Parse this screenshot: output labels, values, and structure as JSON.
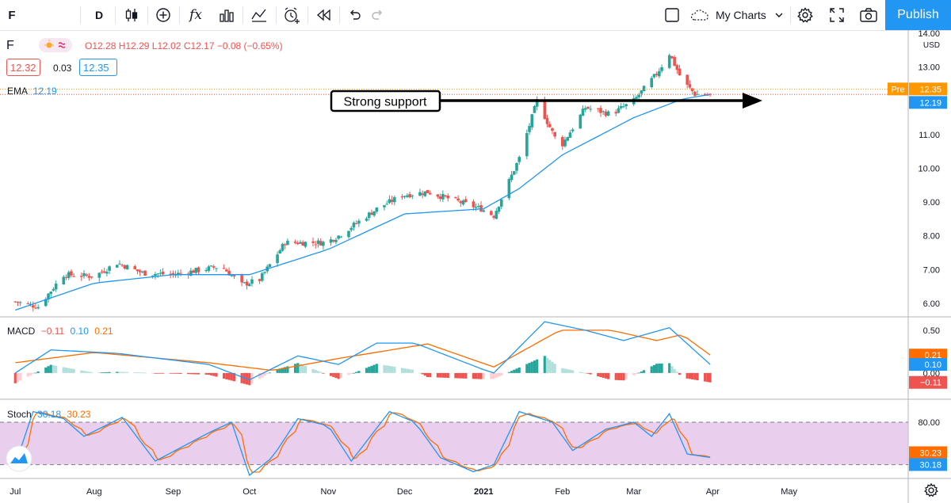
{
  "toolbar": {
    "symbol": "F",
    "interval": "D",
    "indicators_icon": "fx",
    "my_charts_label": "My Charts",
    "publish_label": "Publish"
  },
  "legend": {
    "symbol": "F",
    "open_label": "O12.28",
    "high_label": "H12.29",
    "low_label": "L12.02",
    "close_label": "C12.17",
    "change_label": "−0.08 (−0.65%)",
    "bid": "12.32",
    "spread": "0.03",
    "ask": "12.35",
    "ema_label": "EMA",
    "ema_value": "12.19"
  },
  "macd_legend": {
    "name": "MACD",
    "hist": "−0.11",
    "macd": "0.10",
    "signal": "0.21"
  },
  "stoch_legend": {
    "name": "Stoch",
    "k": "30.18",
    "d": "30.23"
  },
  "annotation": {
    "text": "Strong support"
  },
  "colors": {
    "up": "#26a69a",
    "down": "#ef5350",
    "ema": "#2196f3",
    "signal": "#ff6d00",
    "stoch_band": "#e1bee7",
    "accent": "#2196f3"
  },
  "chart_data": [
    {
      "type": "candlestick",
      "title": "F",
      "currency_label": "USD",
      "ylim": [
        5.6,
        14.0
      ],
      "y_ticks": [
        "14.00",
        "13.00",
        "12.00",
        "11.00",
        "10.00",
        "9.00",
        "8.00",
        "7.00",
        "6.00"
      ],
      "x_ticks": [
        "Jul",
        "Aug",
        "Sep",
        "Oct",
        "Nov",
        "Dec",
        "2021",
        "Feb",
        "Mar",
        "Apr",
        "May"
      ],
      "price_labels": [
        {
          "label": "Pre",
          "value": "12.35"
        },
        {
          "value": "12.19"
        }
      ],
      "support_level": 11.93,
      "ohlc_anchors": [
        {
          "date": "2020-07-01",
          "close": 6.05
        },
        {
          "date": "2020-07-10",
          "close": 5.9
        },
        {
          "date": "2020-07-20",
          "close": 6.85
        },
        {
          "date": "2020-08-01",
          "close": 6.8
        },
        {
          "date": "2020-08-10",
          "close": 7.2
        },
        {
          "date": "2020-08-20",
          "close": 6.9
        },
        {
          "date": "2020-09-01",
          "close": 6.85
        },
        {
          "date": "2020-09-20",
          "close": 7.1
        },
        {
          "date": "2020-09-28",
          "close": 6.55
        },
        {
          "date": "2020-10-05",
          "close": 6.7
        },
        {
          "date": "2020-10-15",
          "close": 7.8
        },
        {
          "date": "2020-10-31",
          "close": 7.8
        },
        {
          "date": "2020-11-05",
          "close": 8.0
        },
        {
          "date": "2020-11-20",
          "close": 8.8
        },
        {
          "date": "2020-11-30",
          "close": 9.2
        },
        {
          "date": "2020-12-10",
          "close": 9.3
        },
        {
          "date": "2020-12-31",
          "close": 8.8
        },
        {
          "date": "2021-01-05",
          "close": 8.6
        },
        {
          "date": "2021-01-15",
          "close": 10.3
        },
        {
          "date": "2021-01-22",
          "close": 12.0
        },
        {
          "date": "2021-01-31",
          "close": 10.6
        },
        {
          "date": "2021-02-10",
          "close": 11.8
        },
        {
          "date": "2021-02-20",
          "close": 11.6
        },
        {
          "date": "2021-03-01",
          "close": 12.0
        },
        {
          "date": "2021-03-10",
          "close": 12.8
        },
        {
          "date": "2021-03-15",
          "close": 13.4
        },
        {
          "date": "2021-03-20",
          "close": 12.6
        },
        {
          "date": "2021-03-25",
          "close": 12.2
        },
        {
          "date": "2021-03-31",
          "close": 12.17
        }
      ],
      "ema_anchors": [
        {
          "date": "2020-07-01",
          "value": 5.8
        },
        {
          "date": "2020-08-01",
          "value": 6.6
        },
        {
          "date": "2020-09-01",
          "value": 6.85
        },
        {
          "date": "2020-10-01",
          "value": 6.85
        },
        {
          "date": "2020-11-01",
          "value": 7.6
        },
        {
          "date": "2020-12-01",
          "value": 8.65
        },
        {
          "date": "2021-01-01",
          "value": 8.8
        },
        {
          "date": "2021-01-15",
          "value": 9.4
        },
        {
          "date": "2021-02-01",
          "value": 10.4
        },
        {
          "date": "2021-03-01",
          "value": 11.5
        },
        {
          "date": "2021-03-20",
          "value": 12.05
        },
        {
          "date": "2021-03-31",
          "value": 12.19
        }
      ]
    },
    {
      "type": "line",
      "title": "MACD",
      "ylim": [
        -0.27,
        0.62
      ],
      "y_ticks": [
        "0.50",
        "0.00"
      ],
      "value_labels": [
        "0.21",
        "0.10",
        "−0.11"
      ],
      "macd_anchors": [
        {
          "date": "2020-07-01",
          "value": 0.0
        },
        {
          "date": "2020-07-15",
          "value": 0.27
        },
        {
          "date": "2020-08-10",
          "value": 0.23
        },
        {
          "date": "2020-09-15",
          "value": 0.1
        },
        {
          "date": "2020-10-01",
          "value": -0.08
        },
        {
          "date": "2020-10-20",
          "value": 0.2
        },
        {
          "date": "2020-11-05",
          "value": 0.1
        },
        {
          "date": "2020-11-20",
          "value": 0.35
        },
        {
          "date": "2020-12-05",
          "value": 0.35
        },
        {
          "date": "2020-12-31",
          "value": 0.05
        },
        {
          "date": "2021-01-05",
          "value": 0.0
        },
        {
          "date": "2021-01-25",
          "value": 0.6
        },
        {
          "date": "2021-02-10",
          "value": 0.5
        },
        {
          "date": "2021-02-25",
          "value": 0.38
        },
        {
          "date": "2021-03-15",
          "value": 0.53
        },
        {
          "date": "2021-03-31",
          "value": 0.1
        }
      ],
      "signal_anchors": [
        {
          "date": "2020-07-01",
          "value": 0.12
        },
        {
          "date": "2020-08-01",
          "value": 0.24
        },
        {
          "date": "2020-09-15",
          "value": 0.12
        },
        {
          "date": "2020-10-10",
          "value": 0.03
        },
        {
          "date": "2020-11-05",
          "value": 0.17
        },
        {
          "date": "2020-12-10",
          "value": 0.34
        },
        {
          "date": "2021-01-05",
          "value": 0.07
        },
        {
          "date": "2021-01-31",
          "value": 0.5
        },
        {
          "date": "2021-02-20",
          "value": 0.5
        },
        {
          "date": "2021-03-10",
          "value": 0.38
        },
        {
          "date": "2021-03-20",
          "value": 0.45
        },
        {
          "date": "2021-03-31",
          "value": 0.21
        }
      ]
    },
    {
      "type": "line",
      "title": "Stoch",
      "ylim": [
        5,
        108
      ],
      "y_ticks": [
        "80.00"
      ],
      "band": [
        20,
        80
      ],
      "value_labels": [
        "30.23",
        "30.18"
      ],
      "k_anchors": [
        {
          "date": "2020-07-01",
          "value": 20
        },
        {
          "date": "2020-07-08",
          "value": 95
        },
        {
          "date": "2020-07-20",
          "value": 85
        },
        {
          "date": "2020-07-28",
          "value": 60
        },
        {
          "date": "2020-08-12",
          "value": 87
        },
        {
          "date": "2020-08-25",
          "value": 25
        },
        {
          "date": "2020-09-15",
          "value": 65
        },
        {
          "date": "2020-09-24",
          "value": 80
        },
        {
          "date": "2020-10-01",
          "value": 5
        },
        {
          "date": "2020-10-10",
          "value": 30
        },
        {
          "date": "2020-10-20",
          "value": 85
        },
        {
          "date": "2020-11-01",
          "value": 75
        },
        {
          "date": "2020-11-10",
          "value": 25
        },
        {
          "date": "2020-11-25",
          "value": 95
        },
        {
          "date": "2020-12-05",
          "value": 80
        },
        {
          "date": "2020-12-15",
          "value": 30
        },
        {
          "date": "2020-12-28",
          "value": 10
        },
        {
          "date": "2021-01-05",
          "value": 20
        },
        {
          "date": "2021-01-15",
          "value": 95
        },
        {
          "date": "2021-01-28",
          "value": 80
        },
        {
          "date": "2021-02-05",
          "value": 40
        },
        {
          "date": "2021-02-18",
          "value": 70
        },
        {
          "date": "2021-03-01",
          "value": 80
        },
        {
          "date": "2021-03-08",
          "value": 60
        },
        {
          "date": "2021-03-15",
          "value": 92
        },
        {
          "date": "2021-03-22",
          "value": 35
        },
        {
          "date": "2021-03-31",
          "value": 30.18
        }
      ]
    }
  ]
}
